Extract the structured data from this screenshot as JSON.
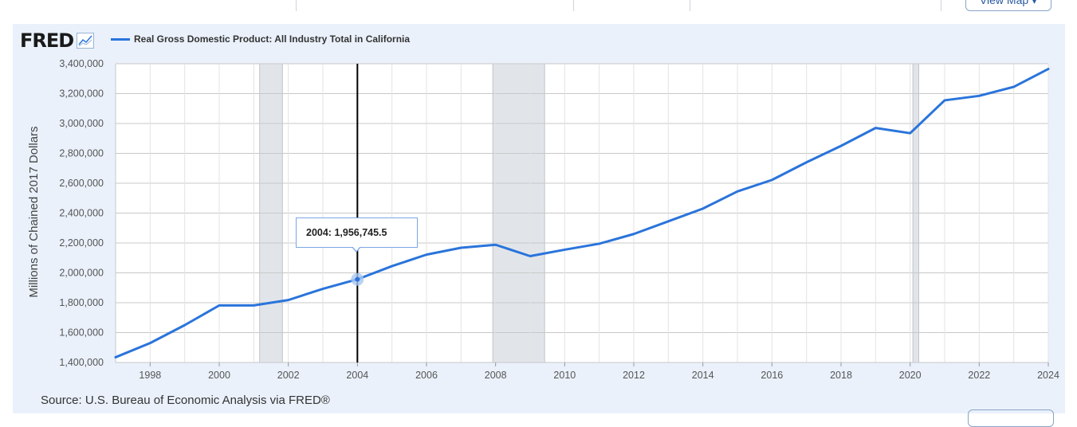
{
  "header": {
    "view_map_label": "View Map"
  },
  "logo": {
    "text": "FRED",
    "icon": "chart-line-icon"
  },
  "legend": {
    "label": "Real Gross Domestic Product: All Industry Total in California",
    "color": "#2a74db"
  },
  "tooltip": {
    "text": "2004:  1,956,745.5"
  },
  "source": {
    "text": "Source: U.S. Bureau of Economic Analysis via FRED®"
  },
  "chart_data": {
    "type": "line",
    "title": "",
    "ylabel": "Millions of Chained 2017 Dollars",
    "xlabel": "",
    "ylim": [
      1400000,
      3400000
    ],
    "xlim": [
      1997,
      2024
    ],
    "yticks": [
      "1,400,000",
      "1,600,000",
      "1,800,000",
      "2,000,000",
      "2,200,000",
      "2,400,000",
      "2,600,000",
      "2,800,000",
      "3,000,000",
      "3,200,000",
      "3,400,000"
    ],
    "xticks": [
      "1998",
      "2000",
      "2002",
      "2004",
      "2006",
      "2008",
      "2010",
      "2012",
      "2014",
      "2016",
      "2018",
      "2020",
      "2022",
      "2024"
    ],
    "recessions": [
      [
        2001.17,
        2001.83
      ],
      [
        2007.92,
        2009.42
      ],
      [
        2020.08,
        2020.25
      ]
    ],
    "highlight_year": 2004,
    "series": [
      {
        "name": "Real Gross Domestic Product: All Industry Total in California",
        "color": "#2a74db",
        "x": [
          1997,
          1998,
          1999,
          2000,
          2001,
          2002,
          2003,
          2004,
          2005,
          2006,
          2007,
          2008,
          2009,
          2010,
          2011,
          2012,
          2013,
          2014,
          2015,
          2016,
          2017,
          2018,
          2019,
          2020,
          2021,
          2022,
          2023,
          2024
        ],
        "values": [
          1435000,
          1530000,
          1650000,
          1782000,
          1782000,
          1818000,
          1893000,
          1956745.5,
          2045000,
          2122000,
          2168000,
          2188000,
          2112000,
          2155000,
          2195000,
          2260000,
          2345000,
          2430000,
          2545000,
          2622000,
          2740000,
          2850000,
          2970000,
          2935000,
          3155000,
          3185000,
          3245000,
          3365000
        ]
      }
    ]
  }
}
